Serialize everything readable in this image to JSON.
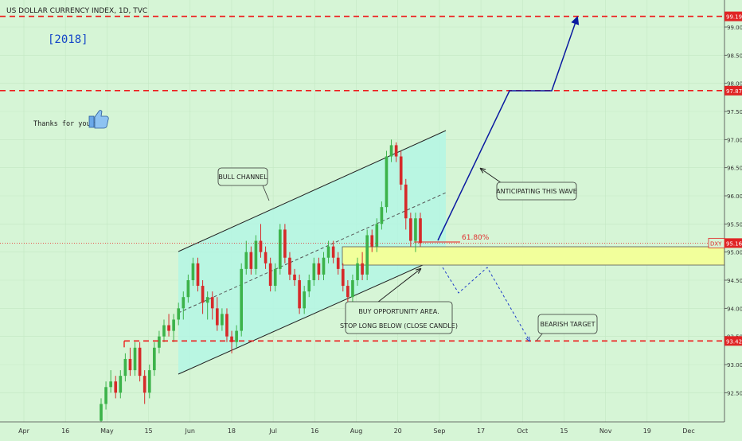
{
  "header": {
    "title": "US DOLLAR CURRENCY INDEX, 1D, TVC"
  },
  "annotations": {
    "year": "[2018]",
    "thanks": "Thanks for your..",
    "bull_channel": "BULL CHANNEL",
    "anticipating": "ANTICIPATING THIS WAVE",
    "buy_line1": "BUY OPPORTUNITY AREA.",
    "buy_line2": "STOP LONG BELOW (CLOSE CANDLE)",
    "bearish_target": "BEARISH TARGET",
    "fib": "61.80%"
  },
  "colors": {
    "background": "#d6f5d6",
    "up_candle": "#3cb34a",
    "down_candle": "#d62a2a",
    "level_line": "#ee1c1c",
    "channel_fill": "#b4f6e4",
    "buy_zone_fill": "#f2ff9b",
    "wave_arrow": "#0a1aa0",
    "year_text": "#1446c8"
  },
  "chart_data": {
    "type": "candlestick",
    "symbol": "DXY",
    "current_price_label": "95.16",
    "ylim": [
      92.0,
      99.3
    ],
    "y_ticks": [
      {
        "value": 92.5,
        "label": "92.50"
      },
      {
        "value": 93.0,
        "label": "93.00"
      },
      {
        "value": 93.5,
        "label": "93.50"
      },
      {
        "value": 94.0,
        "label": "94.00"
      },
      {
        "value": 94.5,
        "label": "94.50"
      },
      {
        "value": 95.0,
        "label": "95.00"
      },
      {
        "value": 95.5,
        "label": "95.50"
      },
      {
        "value": 96.0,
        "label": "96.00"
      },
      {
        "value": 96.5,
        "label": "96.50"
      },
      {
        "value": 97.0,
        "label": "97.00"
      },
      {
        "value": 97.5,
        "label": "97.50"
      },
      {
        "value": 98.0,
        "label": "98.00"
      },
      {
        "value": 98.5,
        "label": "98.50"
      },
      {
        "value": 99.0,
        "label": "99.00"
      }
    ],
    "x_ticks": [
      "Apr",
      "16",
      "May",
      "15",
      "Jun",
      "18",
      "Jul",
      "16",
      "Aug",
      "20",
      "Sep",
      "17",
      "Oct",
      "15",
      "Nov",
      "19",
      "Dec"
    ],
    "levels": [
      {
        "value": 99.19,
        "label": "99.19"
      },
      {
        "value": 97.87,
        "label": "97.87"
      },
      {
        "value": 93.42,
        "label": "93.42"
      }
    ],
    "candles": [
      {
        "o": 92.0,
        "h": 92.4,
        "l": 91.9,
        "c": 92.3
      },
      {
        "o": 92.3,
        "h": 92.7,
        "l": 92.2,
        "c": 92.6
      },
      {
        "o": 92.6,
        "h": 92.9,
        "l": 92.5,
        "c": 92.7
      },
      {
        "o": 92.7,
        "h": 92.8,
        "l": 92.4,
        "c": 92.5
      },
      {
        "o": 92.5,
        "h": 92.9,
        "l": 92.4,
        "c": 92.8
      },
      {
        "o": 92.8,
        "h": 93.2,
        "l": 92.7,
        "c": 93.1
      },
      {
        "o": 93.1,
        "h": 93.3,
        "l": 92.8,
        "c": 92.9
      },
      {
        "o": 92.9,
        "h": 93.4,
        "l": 92.8,
        "c": 93.3
      },
      {
        "o": 93.3,
        "h": 93.4,
        "l": 92.7,
        "c": 92.8
      },
      {
        "o": 92.8,
        "h": 92.9,
        "l": 92.3,
        "c": 92.5
      },
      {
        "o": 92.5,
        "h": 93.0,
        "l": 92.4,
        "c": 92.9
      },
      {
        "o": 92.9,
        "h": 93.4,
        "l": 92.8,
        "c": 93.3
      },
      {
        "o": 93.3,
        "h": 93.6,
        "l": 93.2,
        "c": 93.5
      },
      {
        "o": 93.5,
        "h": 93.8,
        "l": 93.4,
        "c": 93.7
      },
      {
        "o": 93.7,
        "h": 93.9,
        "l": 93.5,
        "c": 93.6
      },
      {
        "o": 93.6,
        "h": 93.9,
        "l": 93.4,
        "c": 93.8
      },
      {
        "o": 93.8,
        "h": 94.1,
        "l": 93.7,
        "c": 94.0
      },
      {
        "o": 94.0,
        "h": 94.3,
        "l": 93.8,
        "c": 94.2
      },
      {
        "o": 94.2,
        "h": 94.6,
        "l": 94.1,
        "c": 94.5
      },
      {
        "o": 94.5,
        "h": 94.9,
        "l": 94.4,
        "c": 94.8
      },
      {
        "o": 94.8,
        "h": 94.9,
        "l": 94.3,
        "c": 94.4
      },
      {
        "o": 94.4,
        "h": 94.5,
        "l": 93.9,
        "c": 94.1
      },
      {
        "o": 94.1,
        "h": 94.3,
        "l": 93.8,
        "c": 94.2
      },
      {
        "o": 94.2,
        "h": 94.3,
        "l": 93.8,
        "c": 94.0
      },
      {
        "o": 94.0,
        "h": 94.2,
        "l": 93.6,
        "c": 93.7
      },
      {
        "o": 93.7,
        "h": 94.0,
        "l": 93.6,
        "c": 93.9
      },
      {
        "o": 93.9,
        "h": 94.0,
        "l": 93.4,
        "c": 93.5
      },
      {
        "o": 93.5,
        "h": 93.6,
        "l": 93.2,
        "c": 93.4
      },
      {
        "o": 93.4,
        "h": 93.7,
        "l": 93.3,
        "c": 93.6
      },
      {
        "o": 93.6,
        "h": 94.8,
        "l": 93.5,
        "c": 94.7
      },
      {
        "o": 94.7,
        "h": 95.2,
        "l": 94.6,
        "c": 95.0
      },
      {
        "o": 95.0,
        "h": 95.1,
        "l": 94.6,
        "c": 94.7
      },
      {
        "o": 94.7,
        "h": 95.3,
        "l": 94.6,
        "c": 95.2
      },
      {
        "o": 95.2,
        "h": 95.5,
        "l": 94.9,
        "c": 95.0
      },
      {
        "o": 95.0,
        "h": 95.1,
        "l": 94.7,
        "c": 94.8
      },
      {
        "o": 94.8,
        "h": 94.9,
        "l": 94.3,
        "c": 94.4
      },
      {
        "o": 94.4,
        "h": 94.8,
        "l": 94.3,
        "c": 94.7
      },
      {
        "o": 94.7,
        "h": 95.5,
        "l": 94.6,
        "c": 95.4
      },
      {
        "o": 95.4,
        "h": 95.5,
        "l": 94.8,
        "c": 94.9
      },
      {
        "o": 94.9,
        "h": 95.0,
        "l": 94.5,
        "c": 94.6
      },
      {
        "o": 94.6,
        "h": 94.7,
        "l": 94.4,
        "c": 94.5
      },
      {
        "o": 94.5,
        "h": 94.6,
        "l": 93.9,
        "c": 94.0
      },
      {
        "o": 94.0,
        "h": 94.4,
        "l": 93.9,
        "c": 94.3
      },
      {
        "o": 94.3,
        "h": 94.6,
        "l": 94.2,
        "c": 94.5
      },
      {
        "o": 94.5,
        "h": 94.9,
        "l": 94.4,
        "c": 94.8
      },
      {
        "o": 94.8,
        "h": 94.9,
        "l": 94.5,
        "c": 94.6
      },
      {
        "o": 94.6,
        "h": 95.0,
        "l": 94.5,
        "c": 94.9
      },
      {
        "o": 94.9,
        "h": 95.2,
        "l": 94.8,
        "c": 95.1
      },
      {
        "o": 95.1,
        "h": 95.2,
        "l": 94.8,
        "c": 94.9
      },
      {
        "o": 94.9,
        "h": 95.0,
        "l": 94.6,
        "c": 94.7
      },
      {
        "o": 94.7,
        "h": 94.8,
        "l": 94.3,
        "c": 94.4
      },
      {
        "o": 94.4,
        "h": 94.5,
        "l": 94.1,
        "c": 94.2
      },
      {
        "o": 94.2,
        "h": 94.6,
        "l": 94.1,
        "c": 94.5
      },
      {
        "o": 94.5,
        "h": 94.9,
        "l": 94.4,
        "c": 94.8
      },
      {
        "o": 94.8,
        "h": 95.0,
        "l": 94.5,
        "c": 94.6
      },
      {
        "o": 94.6,
        "h": 95.4,
        "l": 94.5,
        "c": 95.3
      },
      {
        "o": 95.3,
        "h": 95.4,
        "l": 95.0,
        "c": 95.1
      },
      {
        "o": 95.1,
        "h": 95.6,
        "l": 95.0,
        "c": 95.5
      },
      {
        "o": 95.5,
        "h": 95.9,
        "l": 95.4,
        "c": 95.8
      },
      {
        "o": 95.8,
        "h": 96.8,
        "l": 95.7,
        "c": 96.7
      },
      {
        "o": 96.7,
        "h": 97.0,
        "l": 96.6,
        "c": 96.9
      },
      {
        "o": 96.9,
        "h": 96.95,
        "l": 96.6,
        "c": 96.7
      },
      {
        "o": 96.7,
        "h": 96.8,
        "l": 96.1,
        "c": 96.2
      },
      {
        "o": 96.2,
        "h": 96.3,
        "l": 95.4,
        "c": 95.6
      },
      {
        "o": 95.6,
        "h": 95.7,
        "l": 95.1,
        "c": 95.2
      },
      {
        "o": 95.2,
        "h": 95.7,
        "l": 95.0,
        "c": 95.6
      },
      {
        "o": 95.6,
        "h": 95.7,
        "l": 95.1,
        "c": 95.16
      }
    ]
  }
}
